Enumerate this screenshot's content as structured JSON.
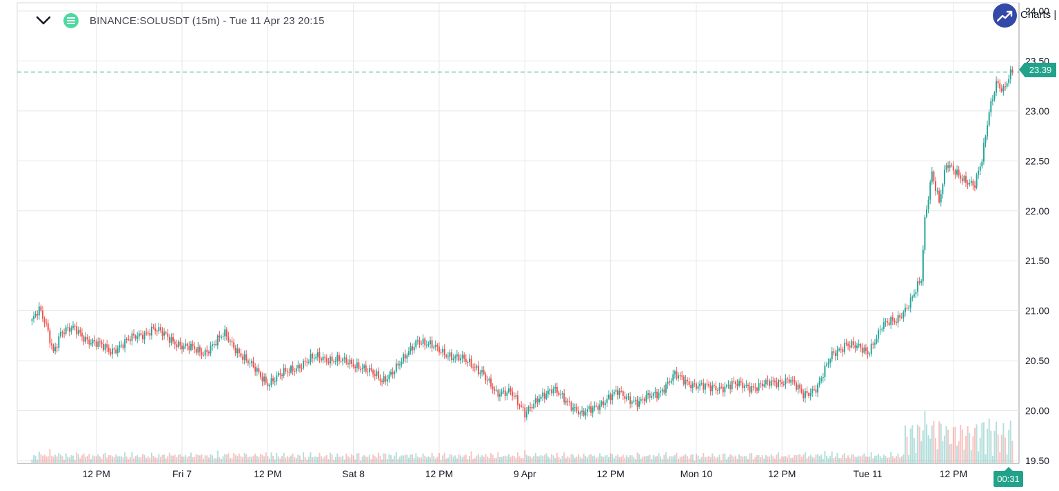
{
  "header": {
    "title": "BINANCE:SOLUSDT (15m) - Tue 11 Apr 23 20:15",
    "menu_icon": "chevron-down-icon",
    "symbol_icon": "ticker-icon"
  },
  "branding": {
    "logo_icon": "trend-up-icon",
    "logo_text": "Charts |"
  },
  "current_price_label": "23.39",
  "countdown_label": "00:31",
  "colors": {
    "up": "#26a69a",
    "down": "#ef5350",
    "price_line": "#22a28a",
    "grid": "#e6e6e6",
    "logo": "#3349a8"
  },
  "chart_data": {
    "type": "candlestick",
    "title": "BINANCE:SOLUSDT (15m) - Tue 11 Apr 23 20:15",
    "xlabel": "",
    "ylabel": "",
    "ylim": [
      19.5,
      24.0
    ],
    "y_ticks": [
      "19.50",
      "20.00",
      "20.50",
      "21.00",
      "21.50",
      "22.00",
      "22.50",
      "23.00",
      "23.50",
      "24.00"
    ],
    "x_tick_labels": [
      "12 PM",
      "Fri 7",
      "12 PM",
      "Sat 8",
      "12 PM",
      "9 Apr",
      "12 PM",
      "Mon 10",
      "12 PM",
      "Tue 11",
      "12 PM"
    ],
    "grid": true,
    "last_price": 23.39,
    "series": [
      {
        "type": "close_path",
        "points": [
          [
            "Thu 6 03:00",
            20.9
          ],
          [
            "Thu 6 04:00",
            21.0
          ],
          [
            "Thu 6 05:00",
            20.85
          ],
          [
            "Thu 6 06:00",
            20.6
          ],
          [
            "Thu 6 07:00",
            20.78
          ],
          [
            "Thu 6 09:00",
            20.82
          ],
          [
            "Thu 6 11:00",
            20.7
          ],
          [
            "Thu 6 14:00",
            20.6
          ],
          [
            "Thu 6 17:00",
            20.72
          ],
          [
            "Thu 6 20:00",
            20.82
          ],
          [
            "Fri 7 00:00",
            20.65
          ],
          [
            "Fri 7 03:00",
            20.58
          ],
          [
            "Fri 7 06:00",
            20.76
          ],
          [
            "Fri 7 09:00",
            20.5
          ],
          [
            "Fri 7 12:00",
            20.28
          ],
          [
            "Fri 7 16:00",
            20.44
          ],
          [
            "Fri 7 19:00",
            20.54
          ],
          [
            "Fri 7 22:00",
            20.5
          ],
          [
            "Sat 8 01:00",
            20.45
          ],
          [
            "Sat 8 04:00",
            20.3
          ],
          [
            "Sat 8 07:00",
            20.5
          ],
          [
            "Sat 8 09:00",
            20.72
          ],
          [
            "Sat 8 12:00",
            20.6
          ],
          [
            "Sat 8 15:00",
            20.52
          ],
          [
            "Sat 8 18:00",
            20.4
          ],
          [
            "Sat 8 20:00",
            20.15
          ],
          [
            "Sat 8 22:00",
            20.22
          ],
          [
            "9 Apr 00:00",
            19.95
          ],
          [
            "9 Apr 02:00",
            20.15
          ],
          [
            "9 Apr 04:00",
            20.2
          ],
          [
            "9 Apr 06:00",
            20.1
          ],
          [
            "9 Apr 08:00",
            19.95
          ],
          [
            "9 Apr 10:00",
            20.05
          ],
          [
            "9 Apr 13:00",
            20.18
          ],
          [
            "9 Apr 16:00",
            20.08
          ],
          [
            "9 Apr 19:00",
            20.2
          ],
          [
            "9 Apr 21:00",
            20.35
          ],
          [
            "9 Apr 23:00",
            20.28
          ],
          [
            "Mon 10 02:00",
            20.22
          ],
          [
            "Mon 10 05:00",
            20.26
          ],
          [
            "Mon 10 08:00",
            20.24
          ],
          [
            "Mon 10 11:00",
            20.28
          ],
          [
            "Mon 10 13:00",
            20.32
          ],
          [
            "Mon 10 15:00",
            20.15
          ],
          [
            "Mon 10 17:00",
            20.25
          ],
          [
            "Mon 10 19:00",
            20.55
          ],
          [
            "Mon 10 21:00",
            20.68
          ],
          [
            "Tue 11 00:00",
            20.58
          ],
          [
            "Tue 11 02:00",
            20.85
          ],
          [
            "Tue 11 04:00",
            20.9
          ],
          [
            "Tue 11 06:00",
            21.1
          ],
          [
            "Tue 11 07:30",
            21.3
          ],
          [
            "Tue 11 08:00",
            21.9
          ],
          [
            "Tue 11 09:00",
            22.4
          ],
          [
            "Tue 11 10:00",
            22.1
          ],
          [
            "Tue 11 11:00",
            22.45
          ],
          [
            "Tue 11 13:00",
            22.35
          ],
          [
            "Tue 11 15:00",
            22.25
          ],
          [
            "Tue 11 16:00",
            22.5
          ],
          [
            "Tue 11 17:00",
            23.0
          ],
          [
            "Tue 11 18:00",
            23.3
          ],
          [
            "Tue 11 19:00",
            23.2
          ],
          [
            "Tue 11 20:15",
            23.39
          ]
        ]
      }
    ]
  }
}
